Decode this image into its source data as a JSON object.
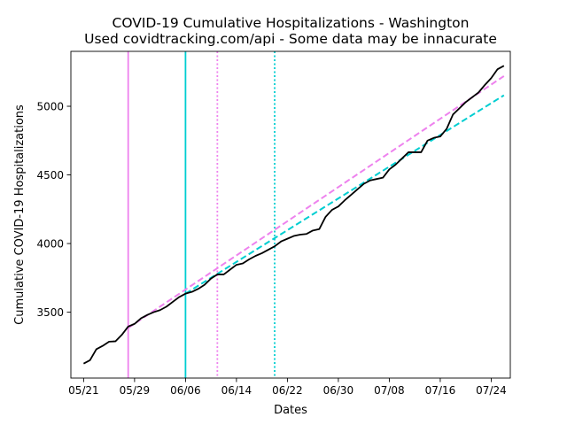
{
  "chart_data": {
    "type": "line",
    "title": "COVID-19 Cumulative Hospitalizations - Washington",
    "subtitle": "Used covidtracking.com/api - Some data may be innacurate",
    "xlabel": "Dates",
    "ylabel": "Cumulative COVID-19 Hospitalizations",
    "x_tick_labels": [
      "05/21",
      "05/29",
      "06/06",
      "06/14",
      "06/22",
      "06/30",
      "07/08",
      "07/16",
      "07/24"
    ],
    "x_ticks": [
      "2020-05-21",
      "2020-05-29",
      "2020-06-06",
      "2020-06-14",
      "2020-06-22",
      "2020-06-30",
      "2020-07-08",
      "2020-07-16",
      "2020-07-24"
    ],
    "y_ticks": [
      3500,
      4000,
      4500,
      5000
    ],
    "xlim": [
      "2020-05-19",
      "2020-07-27"
    ],
    "ylim": [
      3020,
      5400
    ],
    "grid": false,
    "series": [
      {
        "style": "solid",
        "color": "#000000",
        "points": [
          [
            "2020-05-21",
            3125
          ],
          [
            "2020-05-22",
            3150
          ],
          [
            "2020-05-23",
            3230
          ],
          [
            "2020-05-24",
            3255
          ],
          [
            "2020-05-25",
            3285
          ],
          [
            "2020-05-26",
            3288
          ],
          [
            "2020-05-27",
            3335
          ],
          [
            "2020-05-28",
            3395
          ],
          [
            "2020-05-29",
            3415
          ],
          [
            "2020-05-30",
            3455
          ],
          [
            "2020-05-31",
            3480
          ],
          [
            "2020-06-01",
            3500
          ],
          [
            "2020-06-02",
            3515
          ],
          [
            "2020-06-03",
            3540
          ],
          [
            "2020-06-04",
            3575
          ],
          [
            "2020-06-05",
            3610
          ],
          [
            "2020-06-06",
            3635
          ],
          [
            "2020-06-07",
            3648
          ],
          [
            "2020-06-08",
            3670
          ],
          [
            "2020-06-09",
            3700
          ],
          [
            "2020-06-10",
            3745
          ],
          [
            "2020-06-11",
            3775
          ],
          [
            "2020-06-12",
            3775
          ],
          [
            "2020-06-13",
            3810
          ],
          [
            "2020-06-14",
            3845
          ],
          [
            "2020-06-15",
            3855
          ],
          [
            "2020-06-16",
            3885
          ],
          [
            "2020-06-17",
            3910
          ],
          [
            "2020-06-18",
            3930
          ],
          [
            "2020-06-19",
            3955
          ],
          [
            "2020-06-20",
            3980
          ],
          [
            "2020-06-21",
            4015
          ],
          [
            "2020-06-22",
            4035
          ],
          [
            "2020-06-23",
            4055
          ],
          [
            "2020-06-24",
            4065
          ],
          [
            "2020-06-25",
            4070
          ],
          [
            "2020-06-26",
            4095
          ],
          [
            "2020-06-27",
            4105
          ],
          [
            "2020-06-28",
            4195
          ],
          [
            "2020-06-29",
            4245
          ],
          [
            "2020-06-30",
            4270
          ],
          [
            "2020-07-01",
            4315
          ],
          [
            "2020-07-02",
            4355
          ],
          [
            "2020-07-03",
            4395
          ],
          [
            "2020-07-04",
            4435
          ],
          [
            "2020-07-05",
            4460
          ],
          [
            "2020-07-06",
            4470
          ],
          [
            "2020-07-07",
            4480
          ],
          [
            "2020-07-08",
            4540
          ],
          [
            "2020-07-09",
            4575
          ],
          [
            "2020-07-10",
            4620
          ],
          [
            "2020-07-11",
            4665
          ],
          [
            "2020-07-12",
            4665
          ],
          [
            "2020-07-13",
            4665
          ],
          [
            "2020-07-14",
            4750
          ],
          [
            "2020-07-15",
            4770
          ],
          [
            "2020-07-16",
            4780
          ],
          [
            "2020-07-17",
            4835
          ],
          [
            "2020-07-18",
            4940
          ],
          [
            "2020-07-19",
            4985
          ],
          [
            "2020-07-20",
            5030
          ],
          [
            "2020-07-21",
            5065
          ],
          [
            "2020-07-22",
            5100
          ],
          [
            "2020-07-23",
            5155
          ],
          [
            "2020-07-24",
            5205
          ],
          [
            "2020-07-25",
            5270
          ],
          [
            "2020-07-26",
            5295
          ]
        ]
      },
      {
        "style": "dashed",
        "color": "#ee82ee",
        "points": [
          [
            "2020-05-28",
            3385
          ],
          [
            "2020-07-26",
            5220
          ]
        ]
      },
      {
        "style": "dashed",
        "color": "#00ced1",
        "points": [
          [
            "2020-06-06",
            3635
          ],
          [
            "2020-07-26",
            5080
          ]
        ]
      }
    ],
    "vertical_lines": [
      {
        "x": "2020-05-28",
        "style": "solid",
        "color": "#ee82ee"
      },
      {
        "x": "2020-06-06",
        "style": "solid",
        "color": "#00ced1"
      },
      {
        "x": "2020-06-11",
        "style": "dotted",
        "color": "#ee82ee"
      },
      {
        "x": "2020-06-20",
        "style": "dotted",
        "color": "#00ced1"
      }
    ]
  }
}
